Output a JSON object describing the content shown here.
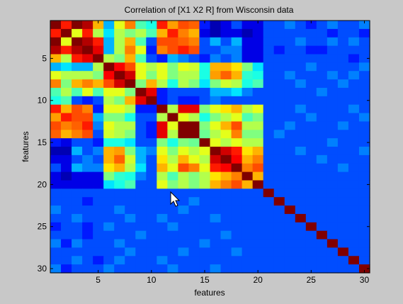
{
  "chart_data": {
    "type": "heatmap",
    "title": "Correlation of [X1 X2 R] from Wisconsin data",
    "xlabel": "features",
    "ylabel": "features",
    "x_ticks": [
      "5",
      "10",
      "15",
      "20",
      "25",
      "30"
    ],
    "y_ticks": [
      "5",
      "10",
      "15",
      "20",
      "25",
      "30"
    ],
    "x_tick_values": [
      5,
      10,
      15,
      20,
      25,
      30
    ],
    "y_tick_values": [
      5,
      10,
      15,
      20,
      25,
      30
    ],
    "n": 30,
    "xlim": [
      0.5,
      30.5
    ],
    "ylim": [
      0.5,
      30.5
    ],
    "clim": [
      0,
      1
    ],
    "colormap": "jet",
    "values": [
      [
        1.0,
        0.85,
        1.0,
        0.95,
        0.7,
        0.3,
        0.6,
        0.75,
        0.45,
        0.4,
        0.85,
        0.72,
        0.8,
        0.78,
        0.15,
        0.05,
        0.1,
        0.2,
        0.1,
        0.1,
        0.2,
        0.2,
        0.25,
        0.2,
        0.15,
        0.2,
        0.25,
        0.2,
        0.2,
        0.25
      ],
      [
        0.85,
        1.0,
        0.6,
        0.85,
        0.55,
        0.35,
        0.55,
        0.5,
        0.55,
        0.45,
        0.7,
        0.85,
        0.75,
        0.7,
        0.1,
        0.05,
        0.1,
        0.1,
        0.05,
        0.1,
        0.2,
        0.2,
        0.2,
        0.2,
        0.2,
        0.2,
        0.15,
        0.2,
        0.2,
        0.15
      ],
      [
        1.0,
        0.6,
        1.0,
        0.95,
        0.85,
        0.3,
        0.55,
        0.7,
        0.45,
        0.2,
        0.8,
        0.8,
        0.78,
        0.75,
        0.2,
        0.3,
        0.2,
        0.3,
        0.1,
        0.1,
        0.2,
        0.2,
        0.2,
        0.25,
        0.2,
        0.2,
        0.25,
        0.2,
        0.25,
        0.2
      ],
      [
        0.95,
        0.85,
        0.95,
        1.0,
        0.9,
        0.3,
        0.55,
        0.75,
        0.6,
        0.15,
        0.75,
        0.8,
        0.85,
        0.8,
        0.2,
        0.2,
        0.25,
        0.25,
        0.1,
        0.1,
        0.2,
        0.15,
        0.2,
        0.2,
        0.15,
        0.15,
        0.2,
        0.2,
        0.2,
        0.2
      ],
      [
        0.7,
        0.55,
        0.85,
        0.9,
        1.0,
        0.55,
        0.5,
        0.7,
        0.45,
        0.2,
        0.15,
        0.3,
        0.25,
        0.2,
        0.15,
        0.25,
        0.2,
        0.25,
        0.1,
        0.1,
        0.2,
        0.2,
        0.2,
        0.2,
        0.2,
        0.2,
        0.2,
        0.2,
        0.15,
        0.2
      ],
      [
        0.3,
        0.35,
        0.3,
        0.3,
        0.55,
        1.0,
        0.88,
        0.8,
        0.6,
        0.55,
        0.6,
        0.5,
        0.6,
        0.58,
        0.4,
        0.7,
        0.7,
        0.65,
        0.5,
        0.35,
        0.2,
        0.2,
        0.2,
        0.2,
        0.25,
        0.2,
        0.2,
        0.2,
        0.2,
        0.25
      ],
      [
        0.6,
        0.55,
        0.55,
        0.55,
        0.5,
        0.88,
        1.0,
        0.92,
        0.6,
        0.5,
        0.6,
        0.5,
        0.55,
        0.55,
        0.4,
        0.72,
        0.78,
        0.7,
        0.42,
        0.4,
        0.2,
        0.2,
        0.25,
        0.2,
        0.2,
        0.2,
        0.25,
        0.2,
        0.25,
        0.2
      ],
      [
        0.75,
        0.5,
        0.7,
        0.75,
        0.7,
        0.8,
        0.92,
        1.0,
        0.5,
        0.7,
        0.55,
        0.4,
        0.55,
        0.5,
        0.35,
        0.5,
        0.58,
        0.55,
        0.4,
        0.45,
        0.2,
        0.2,
        0.2,
        0.25,
        0.2,
        0.2,
        0.2,
        0.25,
        0.2,
        0.2
      ],
      [
        0.45,
        0.55,
        0.45,
        0.6,
        0.45,
        0.6,
        0.6,
        0.5,
        1.0,
        0.9,
        0.15,
        0.2,
        0.2,
        0.2,
        0.2,
        0.3,
        0.3,
        0.35,
        0.25,
        0.2,
        0.2,
        0.2,
        0.2,
        0.2,
        0.2,
        0.25,
        0.2,
        0.2,
        0.2,
        0.2
      ],
      [
        0.4,
        0.45,
        0.2,
        0.15,
        0.2,
        0.55,
        0.5,
        0.7,
        0.9,
        1.0,
        0.15,
        0.2,
        0.15,
        0.15,
        0.2,
        0.25,
        0.2,
        0.2,
        0.2,
        0.2,
        0.2,
        0.2,
        0.2,
        0.2,
        0.2,
        0.2,
        0.2,
        0.2,
        0.2,
        0.2
      ],
      [
        0.85,
        0.7,
        0.8,
        0.75,
        0.15,
        0.6,
        0.6,
        0.55,
        0.15,
        0.15,
        1.0,
        0.55,
        0.9,
        0.9,
        0.5,
        0.6,
        0.65,
        0.7,
        0.55,
        0.6,
        0.2,
        0.2,
        0.2,
        0.25,
        0.2,
        0.2,
        0.2,
        0.2,
        0.25,
        0.2
      ],
      [
        0.72,
        0.85,
        0.8,
        0.8,
        0.3,
        0.5,
        0.5,
        0.4,
        0.2,
        0.2,
        0.55,
        1.0,
        0.6,
        0.55,
        0.4,
        0.5,
        0.55,
        0.6,
        0.45,
        0.5,
        0.2,
        0.2,
        0.2,
        0.2,
        0.25,
        0.2,
        0.2,
        0.2,
        0.2,
        0.25
      ],
      [
        0.8,
        0.75,
        0.78,
        0.85,
        0.25,
        0.6,
        0.55,
        0.55,
        0.2,
        0.15,
        0.9,
        0.6,
        1.0,
        1.0,
        0.5,
        0.6,
        0.7,
        0.8,
        0.55,
        0.55,
        0.2,
        0.2,
        0.25,
        0.2,
        0.2,
        0.2,
        0.2,
        0.25,
        0.2,
        0.2
      ],
      [
        0.78,
        0.7,
        0.75,
        0.8,
        0.2,
        0.58,
        0.55,
        0.5,
        0.2,
        0.15,
        0.9,
        0.55,
        1.0,
        1.0,
        0.48,
        0.55,
        0.6,
        0.75,
        0.5,
        0.5,
        0.2,
        0.25,
        0.2,
        0.2,
        0.2,
        0.2,
        0.2,
        0.2,
        0.2,
        0.2
      ],
      [
        0.15,
        0.1,
        0.2,
        0.2,
        0.15,
        0.4,
        0.4,
        0.35,
        0.2,
        0.2,
        0.5,
        0.4,
        0.5,
        0.48,
        1.0,
        0.6,
        0.55,
        0.6,
        0.55,
        0.55,
        0.2,
        0.2,
        0.2,
        0.2,
        0.2,
        0.2,
        0.25,
        0.2,
        0.2,
        0.2
      ],
      [
        0.05,
        0.05,
        0.3,
        0.2,
        0.25,
        0.7,
        0.72,
        0.5,
        0.3,
        0.25,
        0.6,
        0.5,
        0.6,
        0.55,
        0.6,
        1.0,
        0.92,
        0.85,
        0.65,
        0.7,
        0.2,
        0.2,
        0.2,
        0.25,
        0.2,
        0.2,
        0.2,
        0.2,
        0.2,
        0.25
      ],
      [
        0.1,
        0.1,
        0.2,
        0.25,
        0.2,
        0.7,
        0.78,
        0.58,
        0.3,
        0.2,
        0.65,
        0.55,
        0.7,
        0.6,
        0.55,
        0.92,
        1.0,
        0.88,
        0.7,
        0.75,
        0.2,
        0.2,
        0.2,
        0.2,
        0.2,
        0.25,
        0.2,
        0.2,
        0.2,
        0.2
      ],
      [
        0.2,
        0.1,
        0.3,
        0.25,
        0.25,
        0.65,
        0.7,
        0.55,
        0.35,
        0.2,
        0.7,
        0.6,
        0.8,
        0.75,
        0.6,
        0.85,
        0.88,
        1.0,
        0.75,
        0.8,
        0.2,
        0.2,
        0.2,
        0.2,
        0.2,
        0.2,
        0.2,
        0.25,
        0.2,
        0.2
      ],
      [
        0.1,
        0.05,
        0.1,
        0.1,
        0.1,
        0.5,
        0.42,
        0.4,
        0.25,
        0.2,
        0.55,
        0.45,
        0.55,
        0.5,
        0.55,
        0.65,
        0.7,
        0.75,
        1.0,
        0.7,
        0.2,
        0.2,
        0.2,
        0.2,
        0.2,
        0.2,
        0.2,
        0.2,
        0.2,
        0.2
      ],
      [
        0.1,
        0.1,
        0.1,
        0.1,
        0.1,
        0.35,
        0.4,
        0.45,
        0.2,
        0.2,
        0.6,
        0.5,
        0.55,
        0.5,
        0.55,
        0.7,
        0.75,
        0.8,
        0.7,
        1.0,
        0.2,
        0.2,
        0.2,
        0.2,
        0.2,
        0.2,
        0.2,
        0.2,
        0.2,
        0.2
      ],
      [
        0.2,
        0.2,
        0.2,
        0.2,
        0.2,
        0.2,
        0.2,
        0.2,
        0.2,
        0.2,
        0.2,
        0.2,
        0.2,
        0.2,
        0.2,
        0.2,
        0.2,
        0.2,
        0.2,
        0.2,
        1.0,
        0.2,
        0.2,
        0.2,
        0.2,
        0.2,
        0.2,
        0.2,
        0.2,
        0.2
      ],
      [
        0.2,
        0.2,
        0.2,
        0.15,
        0.2,
        0.2,
        0.2,
        0.2,
        0.2,
        0.2,
        0.2,
        0.2,
        0.2,
        0.25,
        0.2,
        0.2,
        0.2,
        0.2,
        0.2,
        0.2,
        0.2,
        1.0,
        0.2,
        0.2,
        0.2,
        0.2,
        0.2,
        0.2,
        0.2,
        0.2
      ],
      [
        0.25,
        0.2,
        0.2,
        0.2,
        0.2,
        0.2,
        0.25,
        0.2,
        0.2,
        0.2,
        0.2,
        0.2,
        0.25,
        0.2,
        0.2,
        0.2,
        0.2,
        0.2,
        0.2,
        0.2,
        0.2,
        0.2,
        1.0,
        0.2,
        0.2,
        0.2,
        0.2,
        0.2,
        0.2,
        0.2
      ],
      [
        0.2,
        0.2,
        0.25,
        0.2,
        0.2,
        0.2,
        0.2,
        0.25,
        0.2,
        0.2,
        0.25,
        0.2,
        0.2,
        0.2,
        0.2,
        0.25,
        0.2,
        0.2,
        0.2,
        0.2,
        0.2,
        0.2,
        0.2,
        1.0,
        0.2,
        0.2,
        0.2,
        0.2,
        0.2,
        0.2
      ],
      [
        0.15,
        0.2,
        0.2,
        0.15,
        0.2,
        0.25,
        0.2,
        0.2,
        0.2,
        0.2,
        0.2,
        0.25,
        0.2,
        0.2,
        0.2,
        0.2,
        0.2,
        0.2,
        0.2,
        0.2,
        0.2,
        0.2,
        0.2,
        0.2,
        1.0,
        0.2,
        0.2,
        0.2,
        0.2,
        0.2
      ],
      [
        0.2,
        0.2,
        0.2,
        0.15,
        0.2,
        0.2,
        0.2,
        0.2,
        0.25,
        0.2,
        0.2,
        0.2,
        0.2,
        0.2,
        0.2,
        0.2,
        0.25,
        0.2,
        0.2,
        0.2,
        0.2,
        0.2,
        0.2,
        0.2,
        0.2,
        1.0,
        0.2,
        0.2,
        0.2,
        0.2
      ],
      [
        0.25,
        0.15,
        0.25,
        0.2,
        0.2,
        0.2,
        0.25,
        0.2,
        0.2,
        0.2,
        0.2,
        0.2,
        0.2,
        0.2,
        0.25,
        0.2,
        0.2,
        0.2,
        0.2,
        0.2,
        0.2,
        0.2,
        0.2,
        0.2,
        0.2,
        0.2,
        1.0,
        0.2,
        0.2,
        0.2
      ],
      [
        0.2,
        0.2,
        0.2,
        0.2,
        0.2,
        0.2,
        0.2,
        0.25,
        0.2,
        0.2,
        0.2,
        0.2,
        0.25,
        0.2,
        0.2,
        0.2,
        0.2,
        0.25,
        0.2,
        0.2,
        0.2,
        0.2,
        0.2,
        0.2,
        0.2,
        0.2,
        0.2,
        1.0,
        0.2,
        0.2
      ],
      [
        0.2,
        0.2,
        0.25,
        0.2,
        0.15,
        0.2,
        0.25,
        0.2,
        0.2,
        0.2,
        0.25,
        0.2,
        0.2,
        0.2,
        0.2,
        0.2,
        0.2,
        0.2,
        0.2,
        0.2,
        0.2,
        0.2,
        0.2,
        0.2,
        0.2,
        0.2,
        0.2,
        0.2,
        1.0,
        0.2
      ],
      [
        0.25,
        0.15,
        0.2,
        0.2,
        0.2,
        0.25,
        0.2,
        0.2,
        0.2,
        0.2,
        0.2,
        0.25,
        0.2,
        0.2,
        0.2,
        0.25,
        0.2,
        0.2,
        0.2,
        0.2,
        0.2,
        0.2,
        0.2,
        0.2,
        0.2,
        0.2,
        0.2,
        0.2,
        0.2,
        1.0
      ]
    ]
  }
}
